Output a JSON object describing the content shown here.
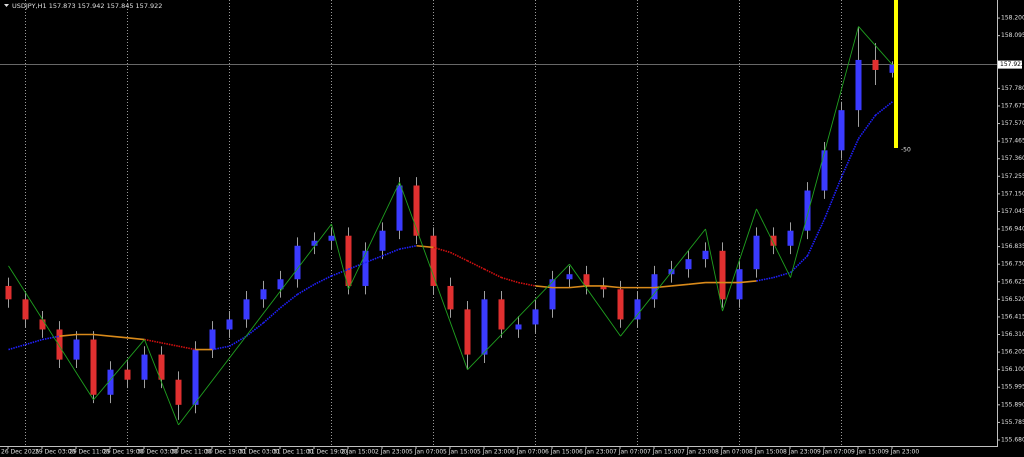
{
  "chart_data": {
    "type": "candlestick",
    "title": "USDJPY,H1  157.873 157.942 157.845 157.922",
    "categories": [
      "26 Dec 2025",
      null,
      "29 Dec 03:00",
      null,
      "29 Dec 11:00",
      null,
      "29 Dec 19:00",
      null,
      "30 Dec 03:00",
      null,
      "30 Dec 11:00",
      null,
      "30 Dec 19:00",
      null,
      "31 Dec 03:00",
      null,
      "31 Dec 11:00",
      null,
      "31 Dec 19:00",
      null,
      "2 Jan 15:00",
      null,
      "2 Jan 23:00",
      null,
      "5 Jan 07:00",
      null,
      "5 Jan 15:00",
      null,
      "5 Jan 23:00",
      null,
      "6 Jan 07:00",
      null,
      "6 Jan 15:00",
      null,
      "6 Jan 23:00",
      null,
      "7 Jan 07:00",
      null,
      "7 Jan 15:00",
      null,
      "7 Jan 23:00",
      null,
      "8 Jan 07:00",
      null,
      "8 Jan 15:00",
      null,
      "8 Jan 23:00",
      null,
      "9 Jan 07:00",
      null,
      "9 Jan 15:00",
      null,
      "9 Jan 23:00"
    ],
    "open": [
      156.6,
      156.52,
      156.4,
      156.34,
      156.16,
      156.28,
      155.95,
      156.1,
      156.04,
      156.19,
      156.04,
      155.89,
      156.22,
      156.34,
      156.4,
      156.52,
      156.58,
      156.64,
      156.84,
      156.87,
      156.9,
      156.6,
      156.81,
      156.93,
      157.2,
      156.9,
      156.6,
      156.46,
      156.19,
      156.52,
      156.34,
      156.37,
      156.46,
      156.64,
      156.67,
      156.6,
      156.58,
      156.4,
      156.52,
      156.67,
      156.7,
      156.76,
      156.81,
      156.52,
      156.7,
      156.9,
      156.84,
      156.93,
      157.17,
      157.41,
      157.65,
      157.95,
      157.873
    ],
    "high": [
      156.65,
      156.57,
      156.45,
      156.39,
      156.33,
      156.33,
      156.15,
      156.15,
      156.24,
      156.24,
      156.09,
      156.27,
      156.39,
      156.45,
      156.57,
      156.63,
      156.69,
      156.89,
      156.92,
      156.95,
      156.95,
      156.86,
      156.98,
      157.25,
      157.25,
      156.95,
      156.65,
      156.51,
      156.57,
      156.57,
      156.42,
      156.51,
      156.69,
      156.72,
      156.72,
      156.65,
      156.63,
      156.57,
      156.72,
      156.75,
      156.81,
      156.86,
      156.86,
      156.75,
      156.95,
      156.95,
      156.98,
      157.22,
      157.46,
      157.7,
      158.15,
      158.05,
      157.942
    ],
    "low": [
      156.47,
      156.35,
      156.29,
      156.11,
      156.11,
      155.9,
      155.9,
      155.99,
      155.99,
      155.99,
      155.8,
      155.84,
      156.17,
      156.29,
      156.35,
      156.47,
      156.53,
      156.59,
      156.79,
      156.82,
      156.55,
      156.55,
      156.76,
      156.88,
      156.85,
      156.55,
      156.41,
      156.1,
      156.14,
      156.29,
      156.29,
      156.32,
      156.41,
      156.59,
      156.55,
      156.53,
      156.35,
      156.35,
      156.47,
      156.62,
      156.65,
      156.71,
      156.47,
      156.47,
      156.65,
      156.79,
      156.79,
      156.88,
      157.12,
      157.36,
      157.55,
      157.8,
      157.845
    ],
    "close": [
      156.52,
      156.4,
      156.34,
      156.16,
      156.28,
      155.95,
      156.1,
      156.04,
      156.19,
      156.04,
      155.89,
      156.22,
      156.34,
      156.4,
      156.52,
      156.58,
      156.64,
      156.84,
      156.87,
      156.9,
      156.6,
      156.81,
      156.93,
      157.2,
      156.9,
      156.6,
      156.46,
      156.19,
      156.52,
      156.34,
      156.37,
      156.46,
      156.64,
      156.67,
      156.6,
      156.58,
      156.4,
      156.52,
      156.67,
      156.7,
      156.76,
      156.81,
      156.52,
      156.7,
      156.9,
      156.84,
      156.93,
      157.17,
      157.41,
      157.65,
      157.95,
      157.89,
      157.922
    ],
    "up_color": "#3b3bff",
    "down_color": "#e03030",
    "wick_color": "#a0a0a0",
    "moving_average": {
      "values": [
        156.22,
        156.25,
        156.28,
        156.3,
        156.31,
        156.31,
        156.3,
        156.29,
        156.28,
        156.26,
        156.24,
        156.22,
        156.22,
        156.24,
        156.3,
        156.38,
        156.47,
        156.55,
        156.61,
        156.66,
        156.7,
        156.74,
        156.78,
        156.82,
        156.84,
        156.83,
        156.8,
        156.75,
        156.7,
        156.65,
        156.62,
        156.6,
        156.59,
        156.59,
        156.6,
        156.6,
        156.59,
        156.59,
        156.59,
        156.6,
        156.61,
        156.62,
        156.62,
        156.62,
        156.63,
        156.65,
        156.68,
        156.78,
        157.0,
        157.25,
        157.48,
        157.62,
        157.7
      ],
      "up_color": "#2020ff",
      "down_color": "#d01010",
      "flat_color": "#d98a1a"
    },
    "zigzag": {
      "color": "#1fa01f",
      "values": [
        156.72,
        null,
        null,
        null,
        null,
        155.92,
        null,
        null,
        156.28,
        null,
        155.77,
        null,
        null,
        null,
        null,
        null,
        null,
        null,
        null,
        156.97,
        156.58,
        null,
        null,
        157.22,
        null,
        null,
        null,
        156.1,
        null,
        null,
        null,
        null,
        null,
        156.73,
        null,
        null,
        156.3,
        null,
        null,
        null,
        null,
        156.94,
        156.45,
        null,
        157.06,
        null,
        156.65,
        null,
        null,
        null,
        158.15,
        null,
        157.92
      ]
    },
    "current_price": 157.922,
    "annotation": "-50",
    "ylim": [
      155.65,
      158.29
    ],
    "yticks": [
      {
        "value": 158.2,
        "label": "158.200"
      },
      {
        "value": 158.095,
        "label": "158.095"
      },
      {
        "value": 157.78,
        "label": "157.780"
      },
      {
        "value": 157.675,
        "label": "157.675"
      },
      {
        "value": 157.57,
        "label": "157.570"
      },
      {
        "value": 157.465,
        "label": "157.465"
      },
      {
        "value": 157.36,
        "label": "157.360"
      },
      157.255,
      {
        "value": 157.15,
        "label": "157.150"
      },
      157.045,
      {
        "value": 156.94,
        "label": "156.940"
      },
      156.835,
      {
        "value": 156.73,
        "label": "156.730"
      },
      156.625,
      {
        "value": 156.52,
        "label": "156.520"
      },
      156.415,
      {
        "value": 156.31,
        "label": "156.310"
      },
      156.205,
      {
        "value": 156.1,
        "label": "156.100"
      },
      155.995,
      {
        "value": 155.89,
        "label": "155.890"
      },
      155.785,
      {
        "value": 155.68,
        "label": "155.680"
      }
    ]
  }
}
